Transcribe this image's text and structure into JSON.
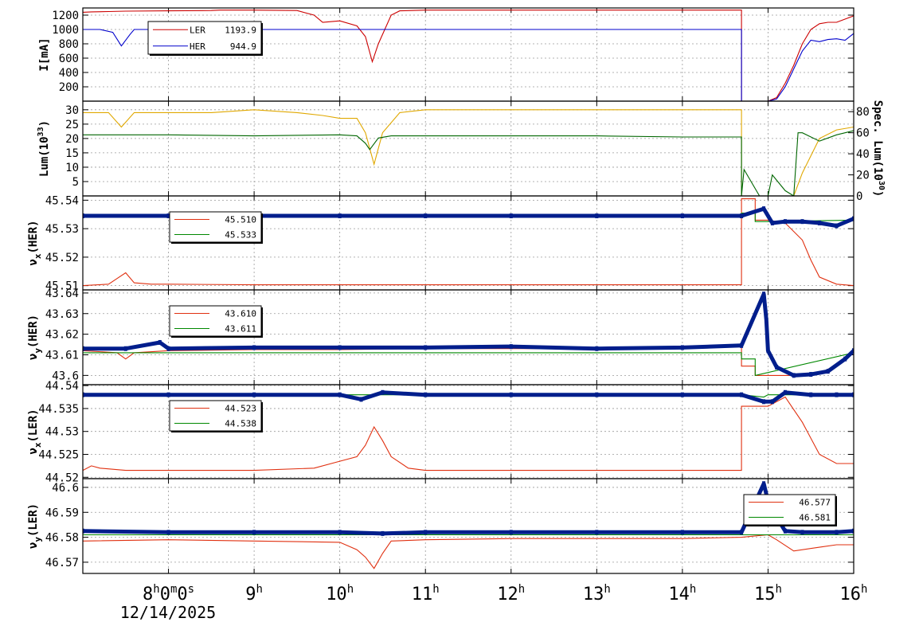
{
  "chart_data": {
    "type": "line",
    "date": "12/14/2025",
    "x_ticks": [
      {
        "t": 8,
        "main": "8",
        "sup1": "h",
        "mid1": "0",
        "sup2": "m",
        "mid2": "0",
        "suffix": "s"
      },
      {
        "t": 9,
        "main": "9",
        "sup1": "h"
      },
      {
        "t": 10,
        "main": "10",
        "sup1": "h"
      },
      {
        "t": 11,
        "main": "11",
        "sup1": "h"
      },
      {
        "t": 12,
        "main": "12",
        "sup1": "h"
      },
      {
        "t": 13,
        "main": "13",
        "sup1": "h"
      },
      {
        "t": 14,
        "main": "14",
        "sup1": "h"
      },
      {
        "t": 15,
        "main": "15",
        "sup1": "h"
      },
      {
        "t": 16,
        "main": "16",
        "sup1": "h"
      }
    ],
    "xlim": [
      7.0,
      16.0
    ],
    "panels": [
      {
        "id": "current",
        "ylabel": "I[mA]",
        "ylim": [
          0,
          1300
        ],
        "yticks": [
          "200",
          "400",
          "600",
          "800",
          "1000",
          "1200"
        ],
        "ytick_values": [
          200,
          400,
          600,
          800,
          1000,
          1200
        ],
        "legend": [
          {
            "name": "LER",
            "value": "1193.9",
            "color": "#cc0000"
          },
          {
            "name": "HER",
            "value": "944.9",
            "color": "#0000cc"
          }
        ],
        "series": [
          {
            "name": "LER",
            "color": "#cc0000",
            "x": [
              7.0,
              7.1,
              7.3,
              7.5,
              8.0,
              8.5,
              8.6,
              9.0,
              9.5,
              9.7,
              9.8,
              10.0,
              10.2,
              10.3,
              10.38,
              10.45,
              10.6,
              10.7,
              11.0,
              12.0,
              13.0,
              14.0,
              14.69,
              14.69,
              15.0,
              15.1,
              15.2,
              15.3,
              15.4,
              15.5,
              15.6,
              15.7,
              15.8,
              16.0
            ],
            "y": [
              1240,
              1245,
              1250,
              1255,
              1260,
              1265,
              1270,
              1270,
              1265,
              1200,
              1100,
              1120,
              1050,
              900,
              550,
              800,
              1200,
              1260,
              1270,
              1270,
              1270,
              1270,
              1270,
              0,
              0,
              50,
              250,
              500,
              800,
              1000,
              1080,
              1100,
              1100,
              1190
            ]
          },
          {
            "name": "HER",
            "color": "#0000cc",
            "x": [
              7.0,
              7.2,
              7.35,
              7.45,
              7.55,
              7.6,
              7.9,
              8.0,
              9.0,
              10.0,
              11.0,
              12.0,
              13.0,
              14.0,
              14.69,
              14.69,
              15.0,
              15.1,
              15.2,
              15.3,
              15.4,
              15.5,
              15.6,
              15.7,
              15.8,
              15.9,
              16.0
            ],
            "y": [
              1000,
              1000,
              960,
              770,
              930,
              1000,
              1000,
              1000,
              1000,
              1000,
              1000,
              1000,
              1000,
              1000,
              1000,
              0,
              0,
              30,
              200,
              450,
              700,
              850,
              830,
              860,
              870,
              850,
              945
            ]
          }
        ]
      },
      {
        "id": "luminosity",
        "ylabel": "Lum(10³³)",
        "ylabel_main": "Lum(10",
        "ylabel_sup": "33",
        "ylabel_end": ")",
        "ylim": [
          0,
          33
        ],
        "yticks": [
          "5",
          "10",
          "15",
          "20",
          "25",
          "30"
        ],
        "ytick_values": [
          5,
          10,
          15,
          20,
          25,
          30
        ],
        "y2label_main": "Spec. Lum(10",
        "y2label_sup": "30",
        "y2label_end": ")",
        "y2lim": [
          0,
          90
        ],
        "y2ticks": [
          "0",
          "20",
          "40",
          "60",
          "80"
        ],
        "y2tick_values": [
          0,
          20,
          40,
          60,
          80
        ],
        "series": [
          {
            "name": "Lum",
            "color": "#e0a800",
            "x": [
              7.0,
              7.3,
              7.45,
              7.6,
              8.0,
              8.5,
              9.0,
              9.5,
              9.8,
              10.0,
              10.2,
              10.3,
              10.4,
              10.5,
              10.7,
              11.0,
              12.0,
              13.0,
              14.0,
              14.69,
              14.69,
              15.0,
              15.3,
              15.4,
              15.6,
              15.8,
              16.0
            ],
            "y": [
              29,
              29,
              24,
              29,
              29,
              29,
              30,
              29,
              28,
              27,
              27,
              22,
              11,
              22,
              29,
              30,
              30,
              30,
              30,
              30,
              0,
              0,
              0,
              8,
              20,
              23,
              24
            ]
          },
          {
            "name": "Spec. Lum",
            "color": "#006600",
            "axis": "y2",
            "x": [
              7.0,
              8.0,
              9.0,
              10.0,
              10.2,
              10.3,
              10.35,
              10.45,
              10.6,
              11.0,
              12.0,
              13.0,
              14.0,
              14.69,
              14.69,
              14.72,
              14.9,
              15.0,
              15.05,
              15.2,
              15.3,
              15.35,
              15.4,
              15.6,
              15.8,
              16.0
            ],
            "y": [
              58,
              58,
              57,
              58,
              57,
              50,
              44,
              55,
              57,
              57,
              57,
              57,
              56,
              56,
              0,
              25,
              0,
              0,
              20,
              5,
              0,
              60,
              60,
              52,
              58,
              62
            ]
          }
        ]
      },
      {
        "id": "nux-her",
        "ylabel_main": "ν",
        "ylabel_sub": "x",
        "ylabel_end": "(HER)",
        "ylim": [
          45.5085,
          45.5415
        ],
        "yticks": [
          "45.51",
          "45.52",
          "45.53",
          "45.54"
        ],
        "ytick_values": [
          45.51,
          45.52,
          45.53,
          45.54
        ],
        "legend": [
          {
            "name": "",
            "value": "45.510",
            "color": "#e03010"
          },
          {
            "name": "",
            "value": "45.533",
            "color": "#008800"
          }
        ],
        "series": [
          {
            "name": "set-red",
            "color": "#e03010",
            "x": [
              7.0,
              7.3,
              7.4,
              7.5,
              7.6,
              7.8,
              8.0,
              9.0,
              10.0,
              11.0,
              12.0,
              13.0,
              14.0,
              14.69,
              14.69,
              14.85,
              14.85,
              15.0,
              15.2,
              15.4,
              15.5,
              15.6,
              15.8,
              16.0
            ],
            "y": [
              45.51,
              45.5105,
              45.5125,
              45.5145,
              45.511,
              45.5105,
              45.5105,
              45.5103,
              45.5103,
              45.5103,
              45.5103,
              45.5103,
              45.5103,
              45.5103,
              45.5405,
              45.5405,
              45.533,
              45.533,
              45.532,
              45.526,
              45.519,
              45.513,
              45.5105,
              45.51
            ]
          },
          {
            "name": "set-green",
            "color": "#008800",
            "x": [
              7.0,
              14.69,
              14.69,
              14.85,
              14.85,
              15.0,
              16.0
            ],
            "y": [
              45.5345,
              45.5345,
              45.5355,
              45.5355,
              45.5325,
              45.5325,
              45.533
            ]
          },
          {
            "name": "measured",
            "color": "#001e8c",
            "style": "points",
            "x": [
              7.0,
              8.0,
              9.0,
              10.0,
              11.0,
              12.0,
              13.0,
              14.0,
              14.69,
              14.95,
              15.05,
              15.2,
              15.4,
              15.6,
              15.8,
              16.0
            ],
            "y": [
              45.5345,
              45.5345,
              45.5345,
              45.5345,
              45.5345,
              45.5345,
              45.5345,
              45.5345,
              45.5345,
              45.537,
              45.532,
              45.5325,
              45.5325,
              45.532,
              45.531,
              45.5335
            ]
          }
        ]
      },
      {
        "id": "nuy-her",
        "ylabel_main": "ν",
        "ylabel_sub": "y",
        "ylabel_end": "(HER)",
        "ylim": [
          43.5955,
          43.6415
        ],
        "yticks": [
          "43.6",
          "43.61",
          "43.62",
          "43.63",
          "43.64"
        ],
        "ytick_values": [
          43.6,
          43.61,
          43.62,
          43.63,
          43.64
        ],
        "legend": [
          {
            "name": "",
            "value": "43.610",
            "color": "#e03010"
          },
          {
            "name": "",
            "value": "43.611",
            "color": "#008800"
          }
        ],
        "series": [
          {
            "name": "set-red",
            "color": "#e03010",
            "x": [
              7.0,
              7.4,
              7.5,
              7.6,
              8.0,
              9.0,
              10.0,
              11.0,
              12.0,
              13.0,
              14.0,
              14.69,
              14.69,
              14.85,
              14.85,
              15.0,
              15.3,
              15.6,
              15.8,
              16.0
            ],
            "y": [
              43.612,
              43.611,
              43.608,
              43.611,
              43.612,
              43.6125,
              43.6125,
              43.613,
              43.613,
              43.613,
              43.613,
              43.614,
              43.6045,
              43.6045,
              43.6,
              43.6,
              43.6,
              43.601,
              43.605,
              43.611
            ]
          },
          {
            "name": "set-green",
            "color": "#008800",
            "x": [
              7.0,
              14.69,
              14.69,
              14.85,
              14.85,
              16.0
            ],
            "y": [
              43.611,
              43.611,
              43.608,
              43.608,
              43.6,
              43.611
            ]
          },
          {
            "name": "measured",
            "color": "#001e8c",
            "style": "points",
            "x": [
              7.0,
              7.5,
              7.9,
              8.0,
              9.0,
              10.0,
              11.0,
              12.0,
              13.0,
              14.0,
              14.69,
              14.95,
              14.98,
              15.0,
              15.1,
              15.3,
              15.5,
              15.7,
              15.9,
              16.0
            ],
            "y": [
              43.613,
              43.613,
              43.616,
              43.613,
              43.6135,
              43.6135,
              43.6135,
              43.614,
              43.613,
              43.6135,
              43.6145,
              43.6395,
              43.627,
              43.612,
              43.604,
              43.6,
              43.6005,
              43.602,
              43.608,
              43.612
            ]
          }
        ]
      },
      {
        "id": "nux-ler",
        "ylabel_main": "ν",
        "ylabel_sub": "x",
        "ylabel_end": "(LER)",
        "ylim": [
          44.5197,
          44.5402
        ],
        "yticks": [
          "44.52",
          "44.525",
          "44.53",
          "44.535",
          "44.54"
        ],
        "ytick_values": [
          44.52,
          44.525,
          44.53,
          44.535,
          44.54
        ],
        "legend": [
          {
            "name": "",
            "value": "44.523",
            "color": "#e03010"
          },
          {
            "name": "",
            "value": "44.538",
            "color": "#008800"
          }
        ],
        "series": [
          {
            "name": "set-red",
            "color": "#e03010",
            "x": [
              7.0,
              7.1,
              7.2,
              7.5,
              8.0,
              9.0,
              9.7,
              10.0,
              10.2,
              10.3,
              10.4,
              10.5,
              10.6,
              10.8,
              11.0,
              12.0,
              13.0,
              14.0,
              14.69,
              14.69,
              15.0,
              15.2,
              15.4,
              15.6,
              15.8,
              16.0
            ],
            "y": [
              44.5215,
              44.5225,
              44.522,
              44.5215,
              44.5215,
              44.5215,
              44.522,
              44.5235,
              44.5245,
              44.527,
              44.531,
              44.528,
              44.5245,
              44.522,
              44.5215,
              44.5215,
              44.5215,
              44.5215,
              44.5215,
              44.5355,
              44.5355,
              44.5375,
              44.532,
              44.525,
              44.523,
              44.523
            ]
          },
          {
            "name": "set-green",
            "color": "#008800",
            "x": [
              7.0,
              14.69,
              14.95,
              15.0,
              16.0
            ],
            "y": [
              44.538,
              44.538,
              44.5375,
              44.538,
              44.538
            ]
          },
          {
            "name": "measured",
            "color": "#001e8c",
            "style": "points",
            "x": [
              7.0,
              8.0,
              9.0,
              10.0,
              10.25,
              10.5,
              11.0,
              12.0,
              13.0,
              14.0,
              14.69,
              14.95,
              15.05,
              15.2,
              15.5,
              15.8,
              16.0
            ],
            "y": [
              44.538,
              44.538,
              44.538,
              44.538,
              44.537,
              44.5385,
              44.538,
              44.538,
              44.538,
              44.538,
              44.538,
              44.5365,
              44.5365,
              44.5385,
              44.538,
              44.538,
              44.538
            ]
          }
        ]
      },
      {
        "id": "nuy-ler",
        "ylabel_main": "ν",
        "ylabel_sub": "y",
        "ylabel_end": "(LER)",
        "ylim": [
          46.5655,
          46.6035
        ],
        "yticks": [
          "46.57",
          "46.58",
          "46.59",
          "46.6"
        ],
        "ytick_values": [
          46.57,
          46.58,
          46.59,
          46.6
        ],
        "legend": [
          {
            "name": "",
            "value": "46.577",
            "color": "#e03010"
          },
          {
            "name": "",
            "value": "46.581",
            "color": "#008800"
          }
        ],
        "series": [
          {
            "name": "set-red",
            "color": "#e03010",
            "x": [
              7.0,
              8.0,
              9.0,
              10.0,
              10.2,
              10.3,
              10.4,
              10.5,
              10.6,
              11.0,
              12.0,
              13.0,
              14.0,
              14.69,
              15.0,
              15.1,
              15.3,
              15.6,
              15.8,
              16.0
            ],
            "y": [
              46.5785,
              46.579,
              46.5785,
              46.578,
              46.575,
              46.572,
              46.5675,
              46.5735,
              46.5785,
              46.579,
              46.5795,
              46.5795,
              46.5795,
              46.58,
              46.581,
              46.579,
              46.5745,
              46.576,
              46.577,
              46.577
            ]
          },
          {
            "name": "set-green",
            "color": "#008800",
            "x": [
              7.0,
              16.0
            ],
            "y": [
              46.581,
              46.581
            ]
          },
          {
            "name": "measured",
            "color": "#001e8c",
            "style": "points",
            "x": [
              7.0,
              8.0,
              9.0,
              10.0,
              10.5,
              11.0,
              12.0,
              13.0,
              14.0,
              14.69,
              14.95,
              15.0,
              15.1,
              15.2,
              15.4,
              15.8,
              16.0
            ],
            "y": [
              46.5825,
              46.582,
              46.582,
              46.582,
              46.5815,
              46.582,
              46.582,
              46.582,
              46.582,
              46.582,
              46.6015,
              46.5945,
              46.588,
              46.5825,
              46.582,
              46.582,
              46.5825
            ]
          }
        ]
      }
    ]
  }
}
